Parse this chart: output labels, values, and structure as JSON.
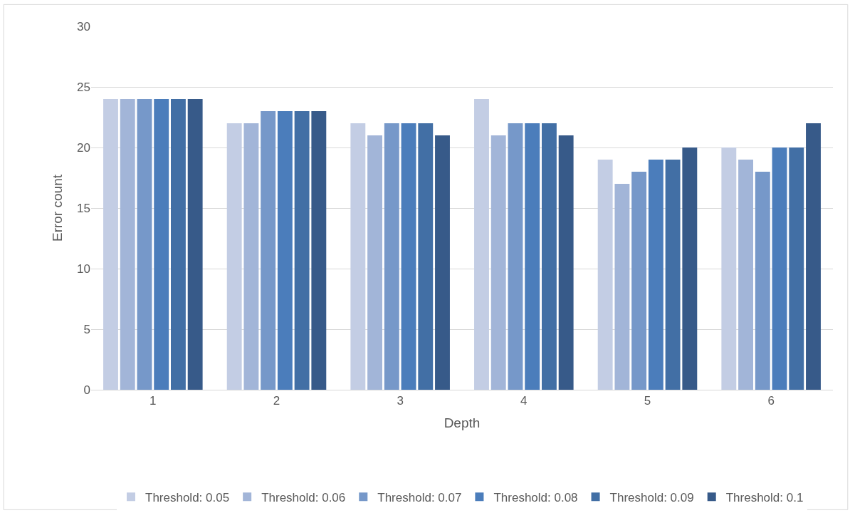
{
  "chart_data": {
    "type": "bar",
    "xlabel": "Depth",
    "ylabel": "Error count",
    "categories": [
      "1",
      "2",
      "3",
      "4",
      "5",
      "6"
    ],
    "series": [
      {
        "name": "Threshold: 0.05",
        "color": "#c3cde4",
        "values": [
          24,
          22,
          22,
          24,
          19,
          20
        ]
      },
      {
        "name": "Threshold: 0.06",
        "color": "#a2b5d8",
        "values": [
          24,
          22,
          21,
          21,
          17,
          19
        ]
      },
      {
        "name": "Threshold: 0.07",
        "color": "#7698c9",
        "values": [
          24,
          23,
          22,
          22,
          18,
          18
        ]
      },
      {
        "name": "Threshold: 0.08",
        "color": "#4b7dbb",
        "values": [
          24,
          23,
          22,
          22,
          19,
          20
        ]
      },
      {
        "name": "Threshold: 0.09",
        "color": "#426fa5",
        "values": [
          24,
          23,
          22,
          22,
          19,
          20
        ]
      },
      {
        "name": "Threshold: 0.1",
        "color": "#375a89",
        "values": [
          24,
          23,
          21,
          21,
          20,
          22
        ]
      }
    ],
    "ylim": [
      0,
      30
    ],
    "yticks": [
      0,
      5,
      10,
      15,
      20,
      25,
      30
    ],
    "grid": "y",
    "legend": "bottom"
  }
}
